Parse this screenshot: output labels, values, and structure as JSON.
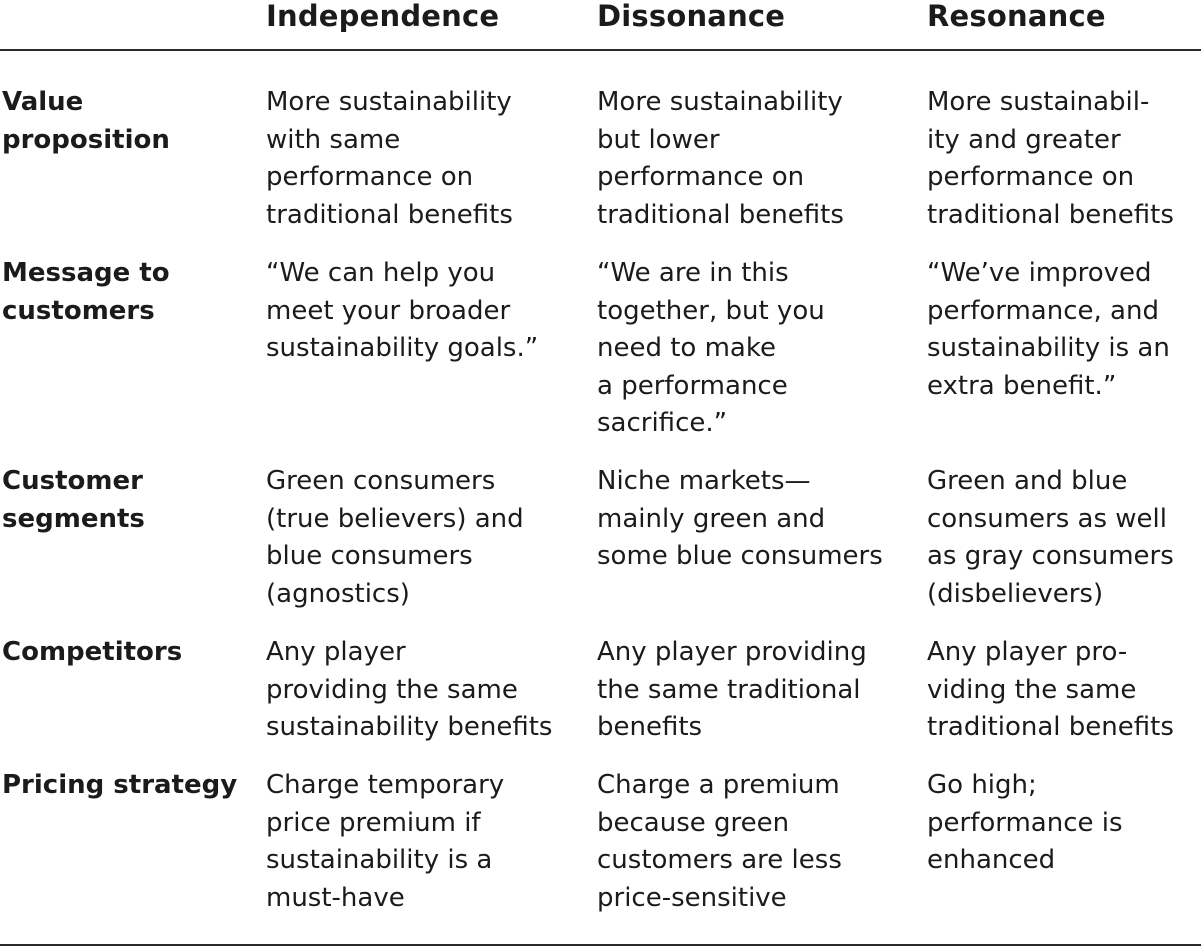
{
  "columns": [
    "Independence",
    "Dissonance",
    "Resonance"
  ],
  "rows": [
    {
      "label": "Value\nproposition",
      "independence": "More sustainability\nwith same\nperformance on\ntraditional benefits",
      "dissonance": "More sustainability\nbut lower\nperformance on\ntraditional benefits",
      "resonance": "More sustainabil-\nity and greater\nperformance on\ntraditional benefits"
    },
    {
      "label": "Message to\ncustomers",
      "independence": "“We can help you\nmeet your broader\nsustainability goals.”",
      "dissonance": "“We are in this\ntogether, but you\nneed to make\na performance\nsacrifice.”",
      "resonance": "“We’ve improved\nperformance, and\nsustainability is an\nextra benefit.”"
    },
    {
      "label": "Customer\nsegments",
      "independence": "Green consumers\n(true believers) and\nblue consumers\n(agnostics)",
      "dissonance": "Niche markets—\nmainly green and\nsome blue consumers",
      "resonance": "Green and blue\nconsumers as well\nas gray consumers\n(disbelievers)"
    },
    {
      "label": "Competitors",
      "independence": "Any player\nproviding the same\nsustainability benefits",
      "dissonance": "Any player providing\nthe same traditional\nbenefits",
      "resonance": "Any player pro-\nviding the same\ntraditional benefits"
    },
    {
      "label": "Pricing strategy",
      "independence": "Charge temporary\nprice premium if\nsustainability is a\nmust-have",
      "dissonance": "Charge a premium\nbecause green\ncustomers are less\nprice-sensitive",
      "resonance": "Go high;\nperformance is\nenhanced"
    }
  ]
}
